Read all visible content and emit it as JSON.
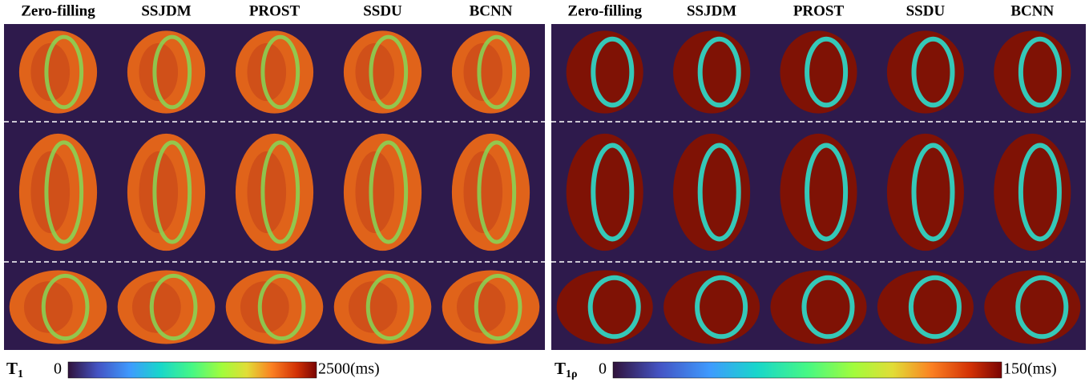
{
  "panels": [
    {
      "column_headers": [
        "Zero-filling",
        "SSJDM",
        "PROST",
        "SSDU",
        "BCNN"
      ],
      "colorbar": {
        "symbol": "T",
        "subscript": "1",
        "min": "0",
        "max": "2500(ms)"
      }
    },
    {
      "column_headers": [
        "Zero-filling",
        "SSJDM",
        "PROST",
        "SSDU",
        "BCNN"
      ],
      "colorbar": {
        "symbol": "T",
        "subscript": "1ρ",
        "min": "0",
        "max": "150(ms)"
      }
    }
  ]
}
